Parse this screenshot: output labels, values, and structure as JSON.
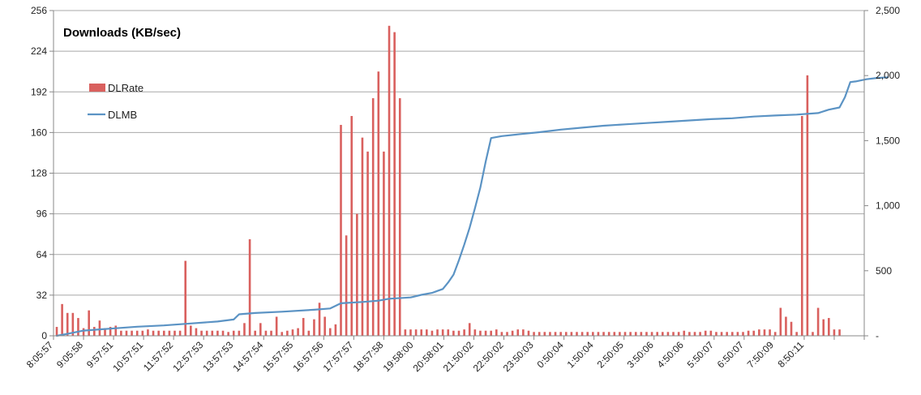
{
  "chart_data": {
    "type": "bar",
    "title": "Downloads (KB/sec)",
    "legend_position": "top-left",
    "grid": true,
    "colors": {
      "bar": "#d9605e",
      "line": "#5b93c4",
      "grid": "#a8a8a8",
      "axis": "#888888"
    },
    "y_left": {
      "min": 0,
      "max": 256,
      "tick_labels": [
        "0",
        "32",
        "64",
        "96",
        "128",
        "160",
        "192",
        "224",
        "256"
      ]
    },
    "y_right": {
      "min": 0,
      "max": 2500,
      "tick_labels": [
        "-",
        "500",
        "1,000",
        "1,500",
        "2,000",
        "2,500"
      ]
    },
    "x_tick_labels": [
      "8:05:57",
      "9:05:58",
      "9:57:51",
      "10:57:51",
      "11:57:52",
      "12:57:53",
      "13:57:53",
      "14:57:54",
      "15:57:55",
      "16:57:56",
      "17:57:57",
      "18:57:58",
      "19:58:00",
      "20:58:01",
      "21:50:02",
      "22:50:02",
      "23:50:03",
      "0:50:04",
      "1:50:04",
      "2:50:05",
      "3:50:06",
      "4:50:06",
      "5:50:07",
      "6:50:07",
      "7:50:09",
      "8:50:11",
      "",
      ""
    ],
    "series": [
      {
        "name": "DLRate",
        "type": "bar",
        "axis": "left",
        "values": [
          7,
          25,
          18,
          18,
          14,
          6,
          20,
          7,
          12,
          6,
          7,
          8,
          4,
          4,
          4,
          4,
          4,
          5,
          4,
          4,
          4,
          4,
          4,
          4,
          59,
          8,
          6,
          4,
          4,
          4,
          4,
          4,
          3,
          4,
          4,
          10,
          76,
          4,
          10,
          4,
          4,
          15,
          3,
          4,
          5,
          6,
          14,
          4,
          13,
          26,
          15,
          6,
          9,
          166,
          79,
          173,
          96,
          156,
          145,
          187,
          208,
          145,
          244,
          239,
          187,
          5,
          5,
          5,
          5,
          5,
          4,
          5,
          5,
          5,
          4,
          4,
          5,
          10,
          5,
          4,
          4,
          4,
          5,
          3,
          3,
          4,
          5,
          5,
          4,
          3,
          3,
          3,
          3,
          3,
          3,
          3,
          3,
          3,
          3,
          3,
          3,
          3,
          3,
          3,
          3,
          3,
          3,
          3,
          3,
          3,
          3,
          3,
          3,
          3,
          3,
          3,
          3,
          4,
          3,
          3,
          3,
          4,
          4,
          3,
          3,
          3,
          3,
          3,
          3,
          4,
          4,
          5,
          5,
          5,
          3,
          22,
          15,
          11,
          3,
          173,
          205,
          3,
          22,
          13,
          14,
          5,
          5
        ]
      },
      {
        "name": "DLMB",
        "type": "line",
        "axis": "right",
        "values": [
          {
            "x": 0,
            "y": 0
          },
          {
            "x": 2,
            "y": 15
          },
          {
            "x": 5,
            "y": 40
          },
          {
            "x": 10,
            "y": 55
          },
          {
            "x": 15,
            "y": 70
          },
          {
            "x": 20,
            "y": 80
          },
          {
            "x": 25,
            "y": 95
          },
          {
            "x": 30,
            "y": 110
          },
          {
            "x": 33,
            "y": 125
          },
          {
            "x": 34,
            "y": 165
          },
          {
            "x": 37,
            "y": 175
          },
          {
            "x": 42,
            "y": 185
          },
          {
            "x": 48,
            "y": 200
          },
          {
            "x": 51,
            "y": 210
          },
          {
            "x": 53,
            "y": 250
          },
          {
            "x": 57,
            "y": 260
          },
          {
            "x": 60,
            "y": 270
          },
          {
            "x": 62,
            "y": 285
          },
          {
            "x": 66,
            "y": 295
          },
          {
            "x": 68,
            "y": 315
          },
          {
            "x": 70,
            "y": 330
          },
          {
            "x": 71,
            "y": 345
          },
          {
            "x": 72,
            "y": 360
          },
          {
            "x": 73,
            "y": 410
          },
          {
            "x": 74,
            "y": 470
          },
          {
            "x": 75,
            "y": 580
          },
          {
            "x": 76,
            "y": 700
          },
          {
            "x": 77,
            "y": 830
          },
          {
            "x": 78,
            "y": 980
          },
          {
            "x": 79,
            "y": 1140
          },
          {
            "x": 80,
            "y": 1340
          },
          {
            "x": 81,
            "y": 1520
          },
          {
            "x": 83,
            "y": 1535
          },
          {
            "x": 86,
            "y": 1548
          },
          {
            "x": 90,
            "y": 1565
          },
          {
            "x": 94,
            "y": 1585
          },
          {
            "x": 98,
            "y": 1600
          },
          {
            "x": 102,
            "y": 1615
          },
          {
            "x": 106,
            "y": 1625
          },
          {
            "x": 110,
            "y": 1635
          },
          {
            "x": 114,
            "y": 1645
          },
          {
            "x": 118,
            "y": 1655
          },
          {
            "x": 122,
            "y": 1665
          },
          {
            "x": 126,
            "y": 1672
          },
          {
            "x": 130,
            "y": 1685
          },
          {
            "x": 134,
            "y": 1693
          },
          {
            "x": 138,
            "y": 1700
          },
          {
            "x": 142,
            "y": 1712
          },
          {
            "x": 144,
            "y": 1738
          },
          {
            "x": 146,
            "y": 1755
          },
          {
            "x": 147,
            "y": 1835
          },
          {
            "x": 148,
            "y": 1950
          },
          {
            "x": 149,
            "y": 1955
          },
          {
            "x": 151,
            "y": 1972
          },
          {
            "x": 153,
            "y": 1982
          },
          {
            "x": 155,
            "y": 1987
          }
        ]
      }
    ]
  }
}
